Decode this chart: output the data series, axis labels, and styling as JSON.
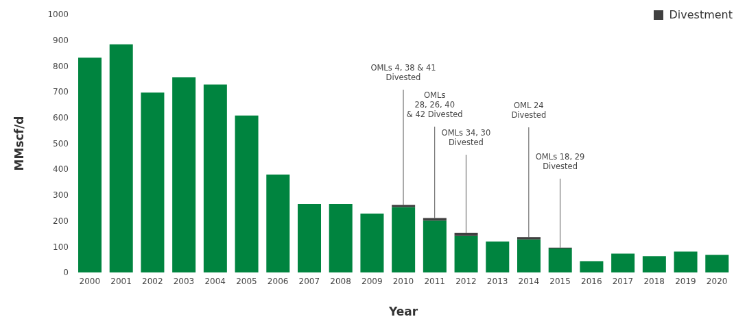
{
  "chart_data": {
    "type": "bar",
    "stacked": true,
    "xlabel": "Year",
    "ylabel": "MMscf/d",
    "categories": [
      "2000",
      "2001",
      "2002",
      "2003",
      "2004",
      "2005",
      "2006",
      "2007",
      "2008",
      "2009",
      "2010",
      "2011",
      "2012",
      "2013",
      "2014",
      "2015",
      "2016",
      "2017",
      "2018",
      "2019",
      "2020"
    ],
    "series": [
      {
        "color": "#00843f",
        "values": [
          832,
          884,
          697,
          756,
          728,
          608,
          379,
          265,
          265,
          228,
          253,
          201,
          141,
          120,
          128,
          93,
          44,
          73,
          63,
          81,
          68
        ]
      },
      {
        "name": "Divestment",
        "color": "#404040",
        "values": [
          null,
          null,
          null,
          null,
          null,
          null,
          null,
          null,
          null,
          null,
          9,
          10,
          13,
          null,
          9,
          3,
          null,
          null,
          null,
          null,
          null
        ]
      }
    ],
    "ylim": [
      0,
      1000
    ],
    "yticks": [
      0,
      100,
      200,
      300,
      400,
      500,
      600,
      700,
      800,
      900,
      1000
    ],
    "grid": false,
    "legend": "top right",
    "annotations": [
      {
        "text": "OMLs 4, 38 & 41\nDivested",
        "x": "2010",
        "y": 262
      },
      {
        "text": "OMLs\n28, 26, 40\n& 42 Divested",
        "x": "2011",
        "y": 211
      },
      {
        "text": "OMLs 34, 30\nDivested",
        "x": "2012",
        "y": 154
      },
      {
        "text": "OML 24\nDivested",
        "x": "2014",
        "y": 137
      },
      {
        "text": "OMLs 18, 29\nDivested",
        "x": "2015",
        "y": 96
      }
    ]
  }
}
